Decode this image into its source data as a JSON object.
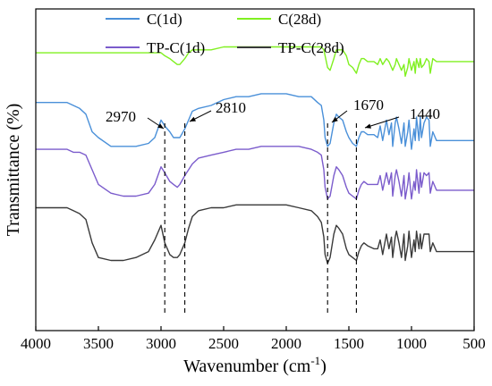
{
  "chart_data": {
    "type": "line",
    "xlabel_main": "Wavenumber (cm",
    "xlabel_sup": "-1",
    "xlabel_end": ")",
    "ylabel": "Transmittance (%)",
    "xlim": [
      4000,
      500
    ],
    "x_inverted": true,
    "y_ticks_shown": false,
    "grid": false,
    "legend_placement": "top",
    "xticks": [
      4000,
      3500,
      3000,
      2500,
      2000,
      1500,
      1000,
      500
    ],
    "xtick_labels": [
      "4000",
      "3500",
      "3000",
      "2500",
      "2000",
      "1500",
      "1000",
      "500"
    ],
    "annotations": [
      {
        "label": "2970",
        "x": 2970
      },
      {
        "label": "2810",
        "x": 2810
      },
      {
        "label": "1670",
        "x": 1670
      },
      {
        "label": "1440",
        "x": 1440
      }
    ],
    "series": [
      {
        "name": "C(28d)",
        "color": "#80f020",
        "x": [
          4000,
          3800,
          3700,
          3650,
          3600,
          3550,
          3500,
          3400,
          3300,
          3200,
          3100,
          3050,
          3000,
          2970,
          2930,
          2900,
          2870,
          2850,
          2810,
          2780,
          2750,
          2700,
          2600,
          2500,
          2400,
          2300,
          2200,
          2100,
          2000,
          1900,
          1800,
          1750,
          1720,
          1700,
          1690,
          1670,
          1650,
          1620,
          1600,
          1580,
          1550,
          1520,
          1500,
          1470,
          1440,
          1420,
          1400,
          1380,
          1350,
          1300,
          1270,
          1250,
          1230,
          1200,
          1180,
          1160,
          1150,
          1130,
          1120,
          1100,
          1080,
          1060,
          1050,
          1030,
          1020,
          1000,
          980,
          970,
          960,
          940,
          930,
          920,
          900,
          880,
          860,
          850,
          830,
          800,
          750,
          700,
          650,
          600,
          550,
          500
        ],
        "y": [
          95,
          95,
          95,
          95,
          95,
          95,
          95,
          95,
          95,
          95,
          95,
          95,
          95,
          94,
          93,
          92,
          91,
          91,
          93,
          95,
          96,
          96,
          96,
          97,
          97,
          97,
          97,
          97,
          97,
          97,
          97,
          97,
          97,
          96,
          94,
          90,
          89,
          93,
          96,
          96,
          96,
          94,
          91,
          90,
          88,
          91,
          93,
          93,
          92,
          92,
          91,
          93,
          91,
          93,
          92,
          90,
          89,
          91,
          93,
          91,
          89,
          91,
          87,
          90,
          93,
          89,
          92,
          88,
          93,
          90,
          93,
          90,
          91,
          93,
          92,
          88,
          93,
          92,
          92,
          92,
          92,
          92,
          92,
          92
        ]
      },
      {
        "name": "C(1d)",
        "color": "#4a90d9",
        "x": [
          4000,
          3850,
          3800,
          3750,
          3700,
          3650,
          3600,
          3550,
          3500,
          3400,
          3300,
          3200,
          3100,
          3050,
          3000,
          2970,
          2930,
          2900,
          2870,
          2850,
          2810,
          2780,
          2750,
          2700,
          2600,
          2500,
          2400,
          2300,
          2200,
          2100,
          2000,
          1900,
          1800,
          1750,
          1720,
          1700,
          1690,
          1670,
          1650,
          1620,
          1600,
          1580,
          1550,
          1520,
          1500,
          1470,
          1440,
          1420,
          1400,
          1380,
          1350,
          1300,
          1270,
          1250,
          1230,
          1200,
          1180,
          1160,
          1150,
          1130,
          1120,
          1100,
          1080,
          1060,
          1050,
          1030,
          1020,
          1000,
          980,
          970,
          960,
          940,
          930,
          920,
          900,
          880,
          860,
          850,
          830,
          800,
          750,
          700,
          650,
          600,
          550,
          500
        ],
        "y": [
          78,
          78,
          78,
          78,
          77,
          76,
          74,
          68,
          66,
          63,
          63,
          63,
          64,
          66,
          72,
          70,
          68,
          66,
          66,
          66,
          69,
          72,
          75,
          76,
          77,
          79,
          80,
          80,
          81,
          81,
          81,
          80,
          80,
          78,
          77,
          72,
          66,
          63,
          64,
          71,
          74,
          73,
          72,
          68,
          66,
          64,
          63,
          66,
          68,
          68,
          67,
          67,
          66,
          70,
          65,
          72,
          67,
          71,
          63,
          71,
          73,
          69,
          64,
          71,
          63,
          68,
          72,
          62,
          69,
          65,
          73,
          65,
          73,
          66,
          71,
          73,
          72,
          63,
          68,
          65,
          65,
          65,
          65,
          65,
          65,
          65
        ]
      },
      {
        "name": "TP-C(1d)",
        "color": "#7b5ccc",
        "x": [
          4000,
          3850,
          3800,
          3750,
          3700,
          3650,
          3600,
          3550,
          3500,
          3400,
          3300,
          3200,
          3100,
          3050,
          3000,
          2970,
          2930,
          2900,
          2870,
          2850,
          2810,
          2780,
          2750,
          2700,
          2600,
          2500,
          2400,
          2300,
          2200,
          2100,
          2000,
          1900,
          1800,
          1750,
          1720,
          1700,
          1690,
          1670,
          1650,
          1620,
          1600,
          1580,
          1550,
          1520,
          1500,
          1470,
          1440,
          1420,
          1400,
          1380,
          1350,
          1300,
          1270,
          1250,
          1230,
          1200,
          1180,
          1160,
          1150,
          1130,
          1120,
          1100,
          1080,
          1060,
          1050,
          1030,
          1020,
          1000,
          980,
          970,
          960,
          940,
          930,
          920,
          900,
          880,
          860,
          850,
          830,
          800,
          750,
          700,
          650,
          600,
          550,
          500
        ],
        "y": [
          62,
          62,
          62,
          62,
          61,
          61,
          60,
          55,
          50,
          47,
          46,
          46,
          47,
          50,
          56,
          54,
          51,
          50,
          49,
          50,
          53,
          55,
          57,
          59,
          60,
          61,
          62,
          62,
          63,
          63,
          63,
          63,
          62,
          61,
          60,
          55,
          49,
          45,
          46,
          53,
          56,
          55,
          53,
          49,
          47,
          46,
          45,
          48,
          50,
          51,
          50,
          50,
          50,
          53,
          48,
          54,
          50,
          54,
          46,
          53,
          55,
          51,
          46,
          53,
          45,
          50,
          54,
          45,
          51,
          48,
          55,
          47,
          54,
          49,
          54,
          53,
          54,
          47,
          51,
          48,
          48,
          48,
          48,
          48,
          48,
          48
        ]
      },
      {
        "name": "TP-C(28d)",
        "color": "#3a3a3a",
        "x": [
          4000,
          3850,
          3800,
          3750,
          3700,
          3650,
          3600,
          3550,
          3500,
          3400,
          3300,
          3200,
          3100,
          3050,
          3000,
          2970,
          2930,
          2900,
          2870,
          2850,
          2810,
          2780,
          2750,
          2700,
          2600,
          2500,
          2400,
          2300,
          2200,
          2100,
          2000,
          1900,
          1800,
          1750,
          1720,
          1700,
          1690,
          1670,
          1650,
          1620,
          1600,
          1580,
          1550,
          1520,
          1500,
          1470,
          1440,
          1420,
          1400,
          1380,
          1350,
          1300,
          1270,
          1250,
          1230,
          1200,
          1180,
          1160,
          1150,
          1130,
          1120,
          1100,
          1080,
          1060,
          1050,
          1030,
          1020,
          1000,
          980,
          970,
          960,
          940,
          930,
          920,
          900,
          880,
          860,
          850,
          830,
          800,
          750,
          700,
          650,
          600,
          550,
          500
        ],
        "y": [
          42,
          42,
          42,
          42,
          41,
          40,
          38,
          30,
          25,
          24,
          24,
          25,
          27,
          31,
          36,
          30,
          26,
          25,
          25,
          26,
          30,
          35,
          39,
          41,
          42,
          42,
          43,
          43,
          43,
          43,
          43,
          42,
          41,
          39,
          37,
          32,
          26,
          23,
          25,
          33,
          36,
          35,
          33,
          28,
          26,
          25,
          24,
          27,
          29,
          30,
          29,
          28,
          28,
          31,
          26,
          33,
          28,
          32,
          25,
          32,
          34,
          30,
          25,
          33,
          24,
          29,
          34,
          25,
          31,
          27,
          34,
          28,
          33,
          28,
          33,
          33,
          33,
          27,
          30,
          27,
          27,
          27,
          27,
          27,
          27,
          27
        ]
      }
    ],
    "legend": [
      {
        "label": "C(1d)",
        "color": "#4a90d9"
      },
      {
        "label": "C(28d)",
        "color": "#80f020"
      },
      {
        "label": "TP-C(1d)",
        "color": "#7b5ccc"
      },
      {
        "label": "TP-C(28d)",
        "color": "#3a3a3a"
      }
    ]
  }
}
